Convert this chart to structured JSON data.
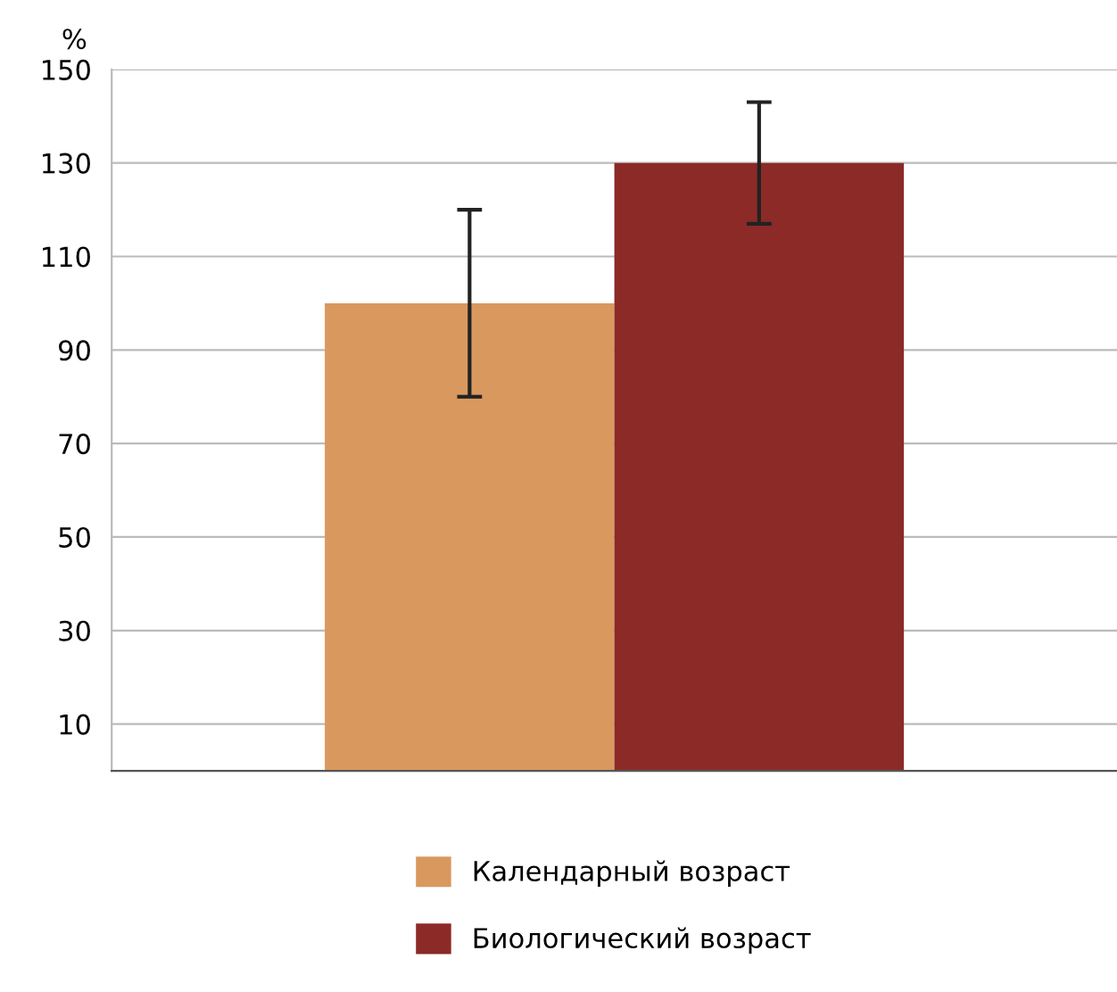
{
  "chart_data": {
    "type": "bar",
    "ylabel": "%",
    "categories": [
      null
    ],
    "series": [
      {
        "name": "Календарный возраст",
        "color": "#d9985e",
        "values": [
          100
        ],
        "errors": [
          [
            80,
            120
          ]
        ]
      },
      {
        "name": "Биологический возраст",
        "color": "#8b2a26",
        "values": [
          130
        ],
        "errors": [
          [
            117,
            143
          ]
        ]
      }
    ],
    "ylim": [
      0,
      150
    ],
    "yticks": [
      10,
      30,
      50,
      70,
      90,
      110,
      130,
      150
    ],
    "grid": "y",
    "legend": "bottom"
  }
}
